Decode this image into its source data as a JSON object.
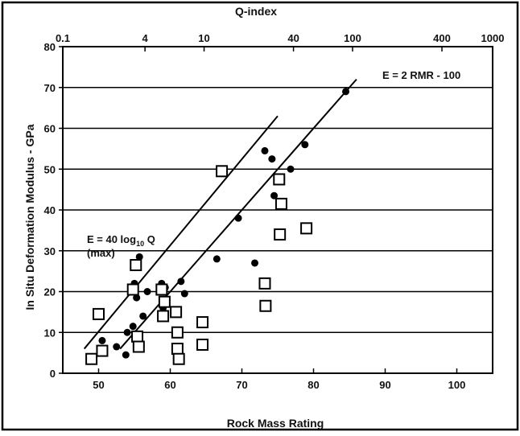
{
  "chart_data": {
    "type": "scatter",
    "title": "",
    "xlabel": "Rock Mass Rating",
    "ylabel": "In Situ Deformation Modulus - GPa",
    "top_axis_label": "Q-index",
    "xlim": [
      45,
      105
    ],
    "ylim": [
      0,
      80
    ],
    "x_ticks": [
      50,
      60,
      70,
      80,
      90,
      100
    ],
    "y_ticks": [
      0,
      10,
      20,
      30,
      40,
      50,
      60,
      70,
      80
    ],
    "q_ticks": [
      {
        "label": "0.1",
        "q": 0.1
      },
      {
        "label": "4",
        "q": 4
      },
      {
        "label": "10",
        "q": 10
      },
      {
        "label": "40",
        "q": 40
      },
      {
        "label": "100",
        "q": 100
      },
      {
        "label": "400",
        "q": 400
      },
      {
        "label": "1000",
        "q": 1000
      }
    ],
    "grid": {
      "horizontal": true,
      "vertical": false
    },
    "lines": [
      {
        "label": "E = 2 RMR - 100",
        "x": [
          53,
          86
        ],
        "y": [
          6,
          72
        ]
      },
      {
        "label": "E = 40 log₁₀ Q\n(max)",
        "x": [
          48,
          75
        ],
        "y": [
          6,
          63
        ]
      }
    ],
    "series": [
      {
        "marker": "filled-circle",
        "x": [
          50.5,
          52.5,
          53.8,
          54,
          54.8,
          55,
          55.3,
          55.7,
          56.2,
          56.8,
          58.8,
          59,
          59.3,
          61.5,
          62,
          66.5,
          69.5,
          71.8,
          73.2,
          74.2,
          74.5,
          76.8,
          78.8,
          84.5
        ],
        "y": [
          8,
          6.5,
          4.5,
          10,
          11.5,
          22,
          18.5,
          28.5,
          14,
          20,
          22,
          16,
          21,
          22.5,
          19.5,
          28,
          38,
          27,
          54.5,
          52.5,
          43.5,
          50,
          56,
          69
        ]
      },
      {
        "marker": "open-square",
        "x": [
          49,
          50,
          50.5,
          54.8,
          55.2,
          55.4,
          55.6,
          58.8,
          59,
          59.2,
          60.8,
          61,
          61,
          61.2,
          64.5,
          64.5,
          67.2,
          73.2,
          73.3,
          75.2,
          75.5,
          75.3,
          79
        ],
        "y": [
          3.5,
          14.5,
          5.5,
          20.5,
          26.5,
          9,
          6.5,
          20.5,
          14,
          17.5,
          15,
          10,
          6,
          3.5,
          12.5,
          7,
          49.5,
          22,
          16.5,
          47.5,
          41.5,
          34,
          35.5
        ]
      }
    ]
  }
}
